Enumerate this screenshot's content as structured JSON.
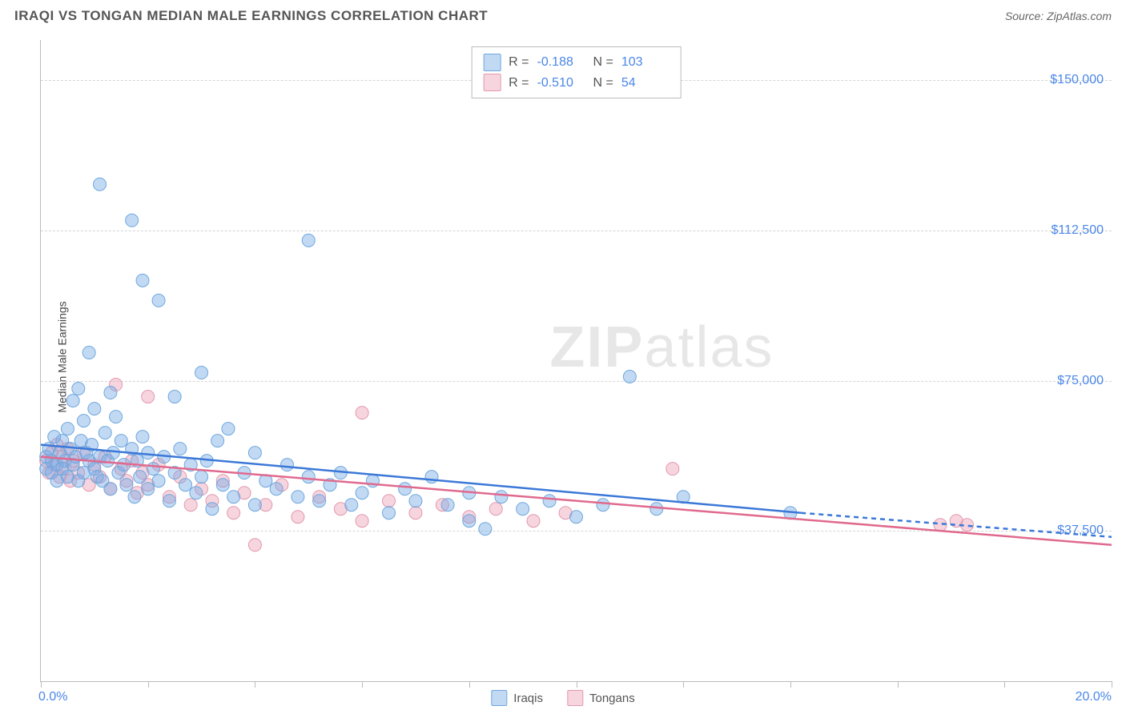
{
  "title": "IRAQI VS TONGAN MEDIAN MALE EARNINGS CORRELATION CHART",
  "source_label": "Source: ZipAtlas.com",
  "ylabel": "Median Male Earnings",
  "watermark_bold": "ZIP",
  "watermark_light": "atlas",
  "x_axis": {
    "min_pct": 0.0,
    "max_pct": 20.0,
    "min_label": "0.0%",
    "max_label": "20.0%",
    "tick_count": 11
  },
  "y_axis": {
    "min": 0,
    "max": 160000,
    "gridlines": [
      37500,
      75000,
      112500,
      150000
    ],
    "labels": [
      "$37,500",
      "$75,000",
      "$112,500",
      "$150,000"
    ]
  },
  "colors": {
    "series_a_fill": "rgba(120,170,230,0.45)",
    "series_a_stroke": "#6fa8dc",
    "series_a_line": "#3b78d8",
    "series_b_fill": "rgba(235,150,175,0.40)",
    "series_b_stroke": "#e299ad",
    "series_b_line": "#e06a8e",
    "axis_text": "#4a86e8",
    "grid": "#d5d5d5",
    "border": "#bbbbbb",
    "title_text": "#555555"
  },
  "marker_radius": 8,
  "line_width": 2.5,
  "series": [
    {
      "key": "a",
      "label": "Iraqis",
      "R": "-0.188",
      "N": "103"
    },
    {
      "key": "b",
      "label": "Tongans",
      "R": "-0.510",
      "N": "54"
    }
  ],
  "trend_lines": {
    "a": {
      "x1": 0.0,
      "y1": 59000,
      "x2_solid": 14.2,
      "y2_solid": 42000,
      "x2_dash": 20.0,
      "y2_dash": 36000
    },
    "b": {
      "x1": 0.0,
      "y1": 56000,
      "x2": 20.0,
      "y2": 34000
    }
  },
  "points_a": [
    [
      0.1,
      56000
    ],
    [
      0.1,
      53000
    ],
    [
      0.15,
      58000
    ],
    [
      0.2,
      55000
    ],
    [
      0.2,
      52000
    ],
    [
      0.25,
      61000
    ],
    [
      0.3,
      54000
    ],
    [
      0.3,
      50000
    ],
    [
      0.35,
      57000
    ],
    [
      0.4,
      60000
    ],
    [
      0.4,
      53000
    ],
    [
      0.45,
      55000
    ],
    [
      0.5,
      63000
    ],
    [
      0.5,
      51000
    ],
    [
      0.55,
      58000
    ],
    [
      0.6,
      70000
    ],
    [
      0.6,
      54000
    ],
    [
      0.65,
      56000
    ],
    [
      0.7,
      73000
    ],
    [
      0.7,
      50000
    ],
    [
      0.75,
      60000
    ],
    [
      0.8,
      65000
    ],
    [
      0.8,
      52000
    ],
    [
      0.85,
      57000
    ],
    [
      0.9,
      82000
    ],
    [
      0.9,
      55000
    ],
    [
      0.95,
      59000
    ],
    [
      1.0,
      68000
    ],
    [
      1.0,
      53000
    ],
    [
      1.05,
      51000
    ],
    [
      1.1,
      124000
    ],
    [
      1.1,
      56000
    ],
    [
      1.15,
      50000
    ],
    [
      1.2,
      62000
    ],
    [
      1.25,
      55000
    ],
    [
      1.3,
      72000
    ],
    [
      1.3,
      48000
    ],
    [
      1.35,
      57000
    ],
    [
      1.4,
      66000
    ],
    [
      1.45,
      52000
    ],
    [
      1.5,
      60000
    ],
    [
      1.55,
      54000
    ],
    [
      1.6,
      49000
    ],
    [
      1.7,
      115000
    ],
    [
      1.7,
      58000
    ],
    [
      1.75,
      46000
    ],
    [
      1.8,
      55000
    ],
    [
      1.85,
      51000
    ],
    [
      1.9,
      100000
    ],
    [
      1.9,
      61000
    ],
    [
      2.0,
      57000
    ],
    [
      2.0,
      48000
    ],
    [
      2.1,
      53000
    ],
    [
      2.2,
      95000
    ],
    [
      2.2,
      50000
    ],
    [
      2.3,
      56000
    ],
    [
      2.4,
      45000
    ],
    [
      2.5,
      71000
    ],
    [
      2.5,
      52000
    ],
    [
      2.6,
      58000
    ],
    [
      2.7,
      49000
    ],
    [
      2.8,
      54000
    ],
    [
      2.9,
      47000
    ],
    [
      3.0,
      77000
    ],
    [
      3.0,
      51000
    ],
    [
      3.1,
      55000
    ],
    [
      3.2,
      43000
    ],
    [
      3.3,
      60000
    ],
    [
      3.4,
      49000
    ],
    [
      3.5,
      63000
    ],
    [
      3.6,
      46000
    ],
    [
      3.8,
      52000
    ],
    [
      4.0,
      57000
    ],
    [
      4.0,
      44000
    ],
    [
      4.2,
      50000
    ],
    [
      4.4,
      48000
    ],
    [
      4.6,
      54000
    ],
    [
      4.8,
      46000
    ],
    [
      5.0,
      110000
    ],
    [
      5.0,
      51000
    ],
    [
      5.2,
      45000
    ],
    [
      5.4,
      49000
    ],
    [
      5.6,
      52000
    ],
    [
      5.8,
      44000
    ],
    [
      6.0,
      47000
    ],
    [
      6.2,
      50000
    ],
    [
      6.5,
      42000
    ],
    [
      6.8,
      48000
    ],
    [
      7.0,
      45000
    ],
    [
      7.3,
      51000
    ],
    [
      7.6,
      44000
    ],
    [
      8.0,
      40000
    ],
    [
      8.0,
      47000
    ],
    [
      8.3,
      38000
    ],
    [
      8.6,
      46000
    ],
    [
      9.0,
      43000
    ],
    [
      9.5,
      45000
    ],
    [
      10.0,
      41000
    ],
    [
      10.5,
      44000
    ],
    [
      11.0,
      76000
    ],
    [
      11.5,
      43000
    ],
    [
      12.0,
      46000
    ],
    [
      14.0,
      42000
    ]
  ],
  "points_b": [
    [
      0.1,
      55000
    ],
    [
      0.15,
      52000
    ],
    [
      0.2,
      57000
    ],
    [
      0.25,
      54000
    ],
    [
      0.3,
      59000
    ],
    [
      0.35,
      51000
    ],
    [
      0.4,
      56000
    ],
    [
      0.45,
      53000
    ],
    [
      0.5,
      58000
    ],
    [
      0.55,
      50000
    ],
    [
      0.6,
      55000
    ],
    [
      0.7,
      52000
    ],
    [
      0.8,
      57000
    ],
    [
      0.9,
      49000
    ],
    [
      1.0,
      54000
    ],
    [
      1.1,
      51000
    ],
    [
      1.2,
      56000
    ],
    [
      1.3,
      48000
    ],
    [
      1.4,
      74000
    ],
    [
      1.5,
      53000
    ],
    [
      1.6,
      50000
    ],
    [
      1.7,
      55000
    ],
    [
      1.8,
      47000
    ],
    [
      1.9,
      52000
    ],
    [
      2.0,
      71000
    ],
    [
      2.0,
      49000
    ],
    [
      2.2,
      54000
    ],
    [
      2.4,
      46000
    ],
    [
      2.6,
      51000
    ],
    [
      2.8,
      44000
    ],
    [
      3.0,
      48000
    ],
    [
      3.2,
      45000
    ],
    [
      3.4,
      50000
    ],
    [
      3.6,
      42000
    ],
    [
      3.8,
      47000
    ],
    [
      4.0,
      34000
    ],
    [
      4.2,
      44000
    ],
    [
      4.5,
      49000
    ],
    [
      4.8,
      41000
    ],
    [
      5.2,
      46000
    ],
    [
      5.6,
      43000
    ],
    [
      6.0,
      67000
    ],
    [
      6.0,
      40000
    ],
    [
      6.5,
      45000
    ],
    [
      7.0,
      42000
    ],
    [
      7.5,
      44000
    ],
    [
      8.0,
      41000
    ],
    [
      8.5,
      43000
    ],
    [
      9.2,
      40000
    ],
    [
      9.8,
      42000
    ],
    [
      11.8,
      53000
    ],
    [
      16.8,
      39000
    ],
    [
      17.1,
      40000
    ],
    [
      17.3,
      39000
    ]
  ]
}
